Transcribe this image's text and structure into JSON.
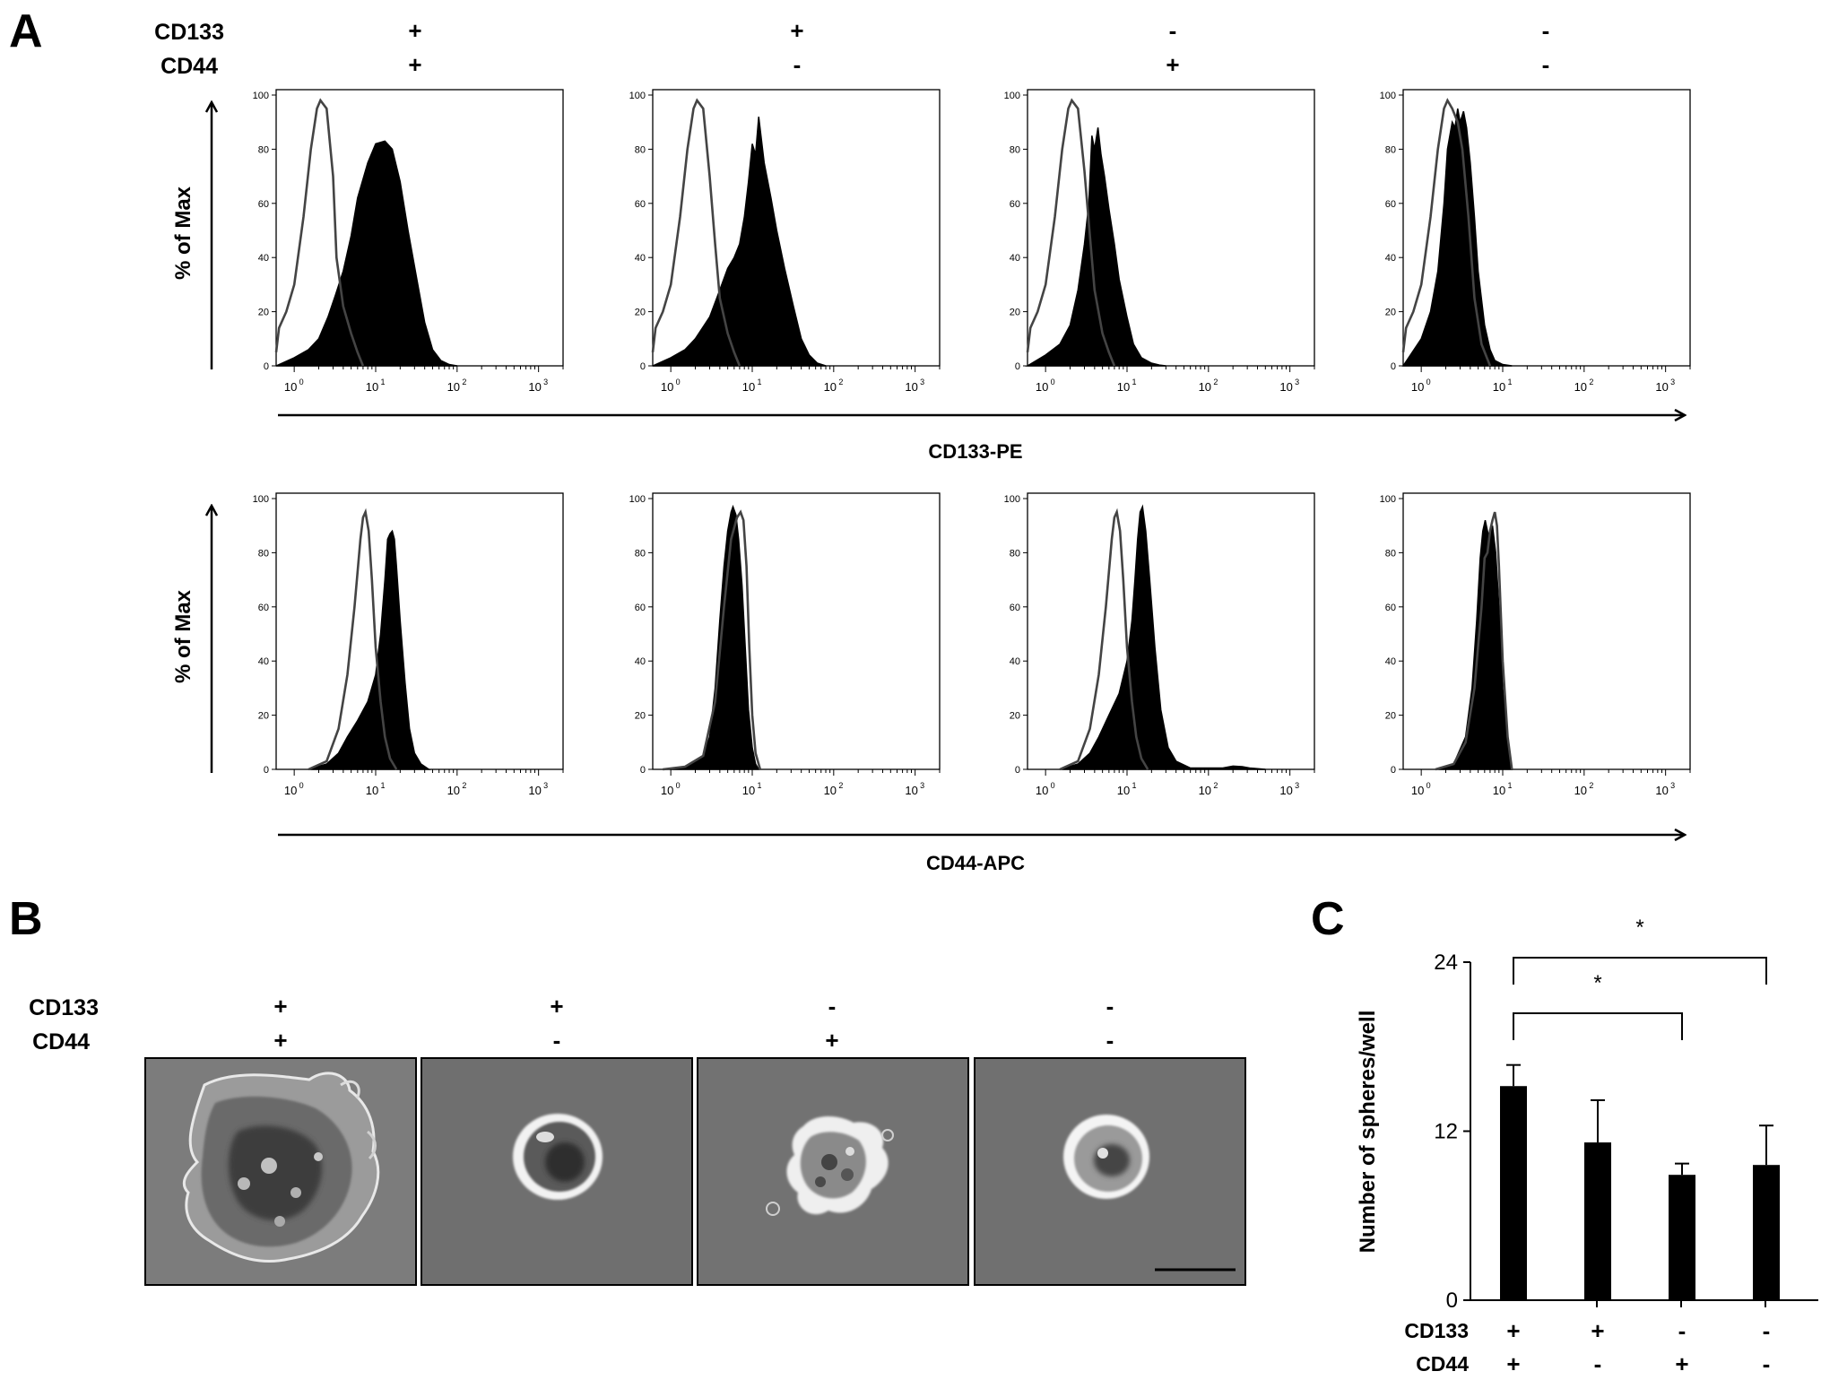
{
  "panel_a": {
    "label": "A",
    "row_labels": [
      "CD133",
      "CD44"
    ],
    "columns": [
      {
        "cd133": "+",
        "cd44": "+"
      },
      {
        "cd133": "+",
        "cd44": "-"
      },
      {
        "cd133": "-",
        "cd44": "+"
      },
      {
        "cd133": "-",
        "cd44": "-"
      }
    ],
    "y_label": "% of Max",
    "y_ticks": [
      "100",
      "80",
      "60",
      "40",
      "20",
      "0"
    ],
    "x_tick_base": "10",
    "x_tick_exponents": [
      "0",
      "1",
      "2",
      "3"
    ],
    "rows": [
      {
        "x_label": "CD133-PE"
      },
      {
        "x_label": "CD44-APC"
      }
    ]
  },
  "panel_b": {
    "label": "B",
    "row_labels": [
      "CD133",
      "CD44"
    ],
    "columns": [
      {
        "cd133": "+",
        "cd44": "+"
      },
      {
        "cd133": "+",
        "cd44": "-"
      },
      {
        "cd133": "-",
        "cd44": "+"
      },
      {
        "cd133": "-",
        "cd44": "-"
      }
    ]
  },
  "chart_data": [
    {
      "type": "area",
      "panel": "A",
      "row": 1,
      "x_scale": "log",
      "xlim": [
        0.6,
        2000
      ],
      "ylim": [
        0,
        100
      ],
      "xlabel": "CD133-PE",
      "ylabel": "% of Max",
      "histograms": [
        {
          "control_open": {
            "x": [
              0.6,
              0.65,
              0.8,
              1,
              1.3,
              1.6,
              1.9,
              2.1,
              2.5,
              3,
              3.3,
              4,
              5,
              6,
              7
            ],
            "y": [
              5,
              14,
              20,
              30,
              55,
              80,
              95,
              98,
              95,
              70,
              40,
              22,
              12,
              5,
              0
            ]
          },
          "sample_filled": {
            "x": [
              0.6,
              1,
              1.5,
              2,
              2.6,
              3.2,
              4,
              5,
              6,
              8,
              10,
              13,
              16,
              20,
              25,
              32,
              40,
              50,
              63,
              80,
              100
            ],
            "y": [
              0,
              3,
              6,
              10,
              18,
              26,
              35,
              48,
              62,
              75,
              82,
              83,
              80,
              68,
              50,
              32,
              16,
              6,
              2,
              0.5,
              0
            ]
          }
        },
        {
          "control_open": {
            "x": [
              0.6,
              0.65,
              0.8,
              1,
              1.3,
              1.6,
              1.9,
              2.1,
              2.5,
              3,
              3.5,
              4,
              5,
              6,
              7
            ],
            "y": [
              5,
              14,
              20,
              30,
              55,
              80,
              95,
              98,
              95,
              70,
              45,
              25,
              12,
              5,
              0
            ]
          },
          "sample_filled": {
            "x": [
              0.6,
              1,
              1.5,
              2,
              3,
              4,
              5,
              6,
              7,
              8,
              9,
              10,
              11,
              12,
              14,
              17,
              20,
              25,
              32,
              40,
              50,
              63,
              80
            ],
            "y": [
              0,
              3,
              6,
              10,
              18,
              28,
              36,
              40,
              45,
              55,
              68,
              82,
              78,
              92,
              75,
              62,
              50,
              36,
              22,
              10,
              4,
              1,
              0
            ]
          }
        },
        {
          "control_open": {
            "x": [
              0.6,
              0.65,
              0.8,
              1,
              1.3,
              1.6,
              1.9,
              2.1,
              2.5,
              3,
              3.5,
              4,
              5,
              6,
              7
            ],
            "y": [
              5,
              14,
              20,
              30,
              55,
              80,
              95,
              98,
              95,
              72,
              48,
              28,
              12,
              5,
              0
            ]
          },
          "sample_filled": {
            "x": [
              0.6,
              1,
              1.5,
              2,
              2.5,
              3,
              3.4,
              3.7,
              4,
              4.4,
              4.8,
              5.3,
              6,
              7,
              8,
              10,
              12,
              15,
              20,
              25,
              30
            ],
            "y": [
              0,
              4,
              8,
              15,
              28,
              45,
              60,
              85,
              80,
              88,
              78,
              70,
              58,
              45,
              32,
              18,
              8,
              3,
              1,
              0.3,
              0
            ]
          }
        },
        {
          "control_open": {
            "x": [
              0.6,
              0.65,
              0.8,
              1,
              1.3,
              1.6,
              1.9,
              2.1,
              2.4,
              2.8,
              3.2,
              3.8,
              4.5,
              5.5,
              7
            ],
            "y": [
              5,
              14,
              20,
              30,
              55,
              80,
              95,
              98,
              95,
              90,
              80,
              55,
              25,
              8,
              0
            ]
          },
          "sample_filled": {
            "x": [
              0.6,
              1,
              1.3,
              1.6,
              1.9,
              2.1,
              2.4,
              2.6,
              2.8,
              3,
              3.3,
              3.6,
              4,
              4.5,
              5,
              6,
              7,
              8,
              10,
              13
            ],
            "y": [
              0,
              10,
              20,
              35,
              60,
              80,
              90,
              88,
              95,
              90,
              94,
              88,
              75,
              55,
              35,
              15,
              6,
              2,
              0.5,
              0
            ]
          }
        }
      ]
    },
    {
      "type": "area",
      "panel": "A",
      "row": 2,
      "x_scale": "log",
      "xlim": [
        0.6,
        2000
      ],
      "ylim": [
        0,
        100
      ],
      "xlabel": "CD44-APC",
      "ylabel": "% of Max",
      "histograms": [
        {
          "control_open": {
            "x": [
              1.5,
              2.5,
              3.5,
              4.5,
              5.5,
              6.5,
              7,
              7.5,
              8.2,
              9,
              10,
              11.5,
              13,
              15,
              18
            ],
            "y": [
              0,
              3,
              15,
              35,
              60,
              85,
              93,
              95,
              88,
              70,
              45,
              25,
              12,
              4,
              0
            ]
          },
          "sample_filled": {
            "x": [
              1.5,
              2.5,
              3.5,
              4.5,
              6,
              8,
              10,
              11.5,
              13,
              14,
              15,
              16,
              17,
              18,
              20,
              23,
              26,
              30,
              36,
              45
            ],
            "y": [
              0,
              2,
              6,
              12,
              18,
              25,
              35,
              50,
              70,
              85,
              87,
              88,
              85,
              75,
              55,
              32,
              15,
              6,
              2,
              0
            ]
          }
        },
        {
          "control_open": {
            "x": [
              0.8,
              1.5,
              2.5,
              3.5,
              4.5,
              5.5,
              6.5,
              7.2,
              7.8,
              8.5,
              9.2,
              10,
              11,
              12.5
            ],
            "y": [
              0,
              1,
              5,
              25,
              60,
              85,
              93,
              95,
              92,
              75,
              45,
              20,
              6,
              0
            ]
          },
          "sample_filled": {
            "x": [
              0.8,
              1.5,
              2.5,
              3,
              3.5,
              4,
              4.5,
              5,
              5.5,
              5.8,
              6.3,
              6.8,
              7.5,
              8.2,
              9,
              10,
              11,
              12
            ],
            "y": [
              0,
              1,
              5,
              12,
              30,
              55,
              75,
              88,
              95,
              97,
              94,
              85,
              68,
              45,
              22,
              8,
              2,
              0
            ]
          }
        },
        {
          "control_open": {
            "x": [
              1.5,
              2.5,
              3.5,
              4.5,
              5.5,
              6.5,
              7,
              7.5,
              8.2,
              9,
              10,
              11.5,
              13,
              15,
              18
            ],
            "y": [
              0,
              3,
              15,
              35,
              60,
              85,
              93,
              95,
              88,
              70,
              45,
              25,
              12,
              4,
              0
            ]
          },
          "sample_filled": {
            "x": [
              1.5,
              2.5,
              3.5,
              4.5,
              6,
              8,
              10,
              11.5,
              12.5,
              13.5,
              14.5,
              15.5,
              17,
              19,
              22,
              26,
              32,
              40,
              60,
              150,
              200,
              260,
              320,
              500
            ],
            "y": [
              0,
              2,
              6,
              12,
              20,
              28,
              40,
              55,
              70,
              85,
              95,
              97,
              88,
              70,
              45,
              22,
              8,
              3,
              0.5,
              0.5,
              1.2,
              1,
              0.5,
              0
            ]
          }
        },
        {
          "control_open": {
            "x": [
              1.5,
              2.5,
              3.5,
              4.5,
              5.5,
              6,
              6.5,
              7,
              7.5,
              8,
              8.5,
              9,
              10,
              11.5,
              13
            ],
            "y": [
              0,
              2,
              10,
              30,
              60,
              78,
              80,
              88,
              92,
              95,
              90,
              75,
              40,
              12,
              0
            ]
          },
          "sample_filled": {
            "x": [
              1.5,
              2.5,
              3.5,
              4.2,
              4.8,
              5.3,
              5.7,
              6.1,
              6.5,
              7,
              7.5,
              8.2,
              9,
              10,
              11.5,
              13
            ],
            "y": [
              0,
              2,
              12,
              30,
              55,
              78,
              88,
              92,
              88,
              85,
              90,
              80,
              60,
              30,
              10,
              0
            ]
          }
        }
      ]
    },
    {
      "type": "bar",
      "panel": "C",
      "label": "C",
      "categories": [
        {
          "cd133": "+",
          "cd44": "+"
        },
        {
          "cd133": "+",
          "cd44": "-"
        },
        {
          "cd133": "-",
          "cd44": "+"
        },
        {
          "cd133": "-",
          "cd44": "-"
        }
      ],
      "row_labels": [
        "CD133",
        "CD44"
      ],
      "values": [
        15.2,
        11.2,
        8.9,
        9.6
      ],
      "errors": [
        1.5,
        3.0,
        0.8,
        2.8
      ],
      "ylabel": "Number of spheres/well",
      "ylim": [
        0,
        24
      ],
      "yticks": [
        "0",
        "12",
        "24"
      ],
      "significance": [
        {
          "from": 0,
          "to": 2,
          "label": "*"
        },
        {
          "from": 0,
          "to": 3,
          "label": "*"
        }
      ]
    }
  ]
}
